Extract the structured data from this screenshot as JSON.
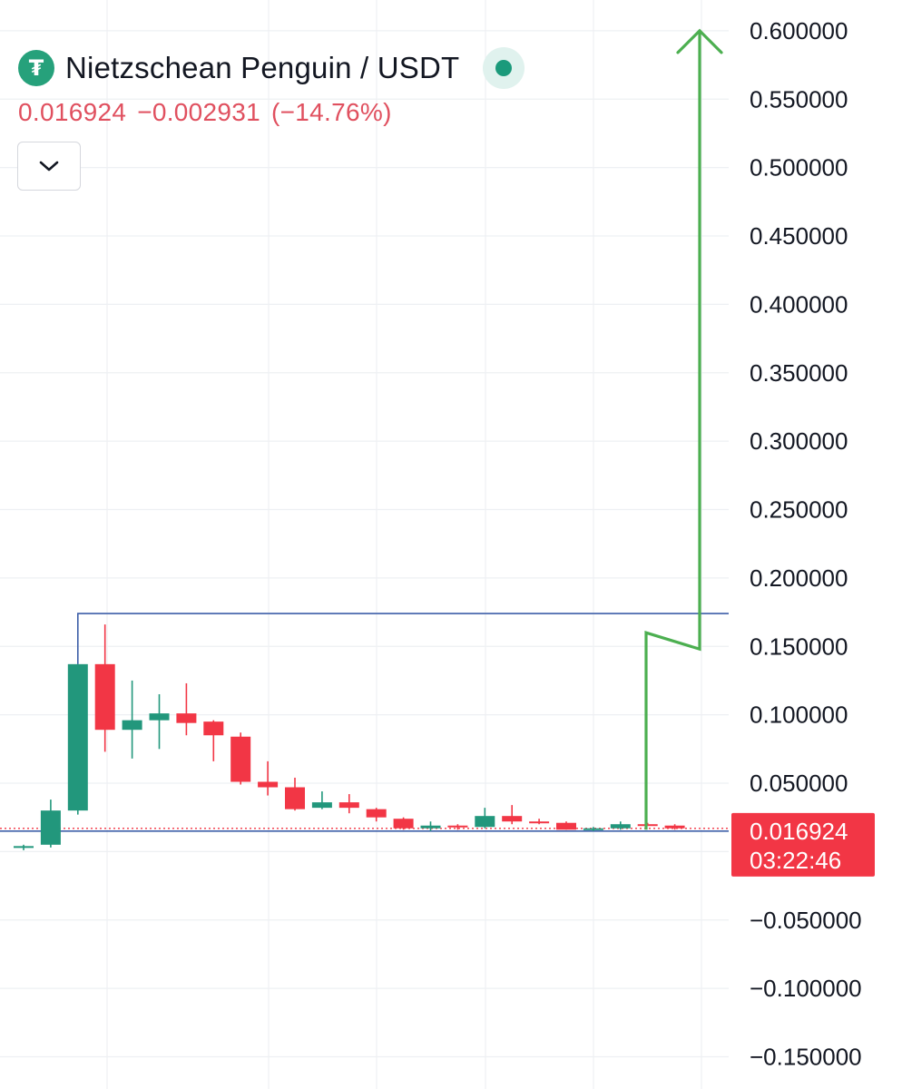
{
  "header": {
    "coin_icon": "tether-icon",
    "pair_title": "Nietzschean Penguin / USDT",
    "status_color": "#1b9a7b"
  },
  "price_line": {
    "last": "0.016924",
    "change": "−0.002931",
    "change_pct": "(−14.76%)"
  },
  "controls": {
    "collapse_icon": "chevron-down-icon"
  },
  "chart_data": {
    "type": "candlestick",
    "title": "Nietzschean Penguin / USDT",
    "ylim": [
      -0.16,
      0.605
    ],
    "y_ticks": [
      {
        "value": 0.6,
        "label": "0.600000"
      },
      {
        "value": 0.55,
        "label": "0.550000"
      },
      {
        "value": 0.5,
        "label": "0.500000"
      },
      {
        "value": 0.45,
        "label": "0.450000"
      },
      {
        "value": 0.4,
        "label": "0.400000"
      },
      {
        "value": 0.35,
        "label": "0.350000"
      },
      {
        "value": 0.3,
        "label": "0.300000"
      },
      {
        "value": 0.25,
        "label": "0.250000"
      },
      {
        "value": 0.2,
        "label": "0.200000"
      },
      {
        "value": 0.15,
        "label": "0.150000"
      },
      {
        "value": 0.1,
        "label": "0.100000"
      },
      {
        "value": 0.05,
        "label": "0.050000"
      },
      {
        "value": -0.05,
        "label": "−0.050000"
      },
      {
        "value": -0.1,
        "label": "−0.100000"
      },
      {
        "value": -0.15,
        "label": "−0.150000"
      }
    ],
    "candles": [
      {
        "o": 0.003,
        "h": 0.005,
        "l": 0.001,
        "c": 0.004
      },
      {
        "o": 0.005,
        "h": 0.038,
        "l": 0.003,
        "c": 0.03
      },
      {
        "o": 0.03,
        "h": 0.137,
        "l": 0.027,
        "c": 0.137
      },
      {
        "o": 0.137,
        "h": 0.166,
        "l": 0.073,
        "c": 0.089
      },
      {
        "o": 0.089,
        "h": 0.125,
        "l": 0.068,
        "c": 0.096
      },
      {
        "o": 0.096,
        "h": 0.115,
        "l": 0.075,
        "c": 0.101
      },
      {
        "o": 0.101,
        "h": 0.123,
        "l": 0.085,
        "c": 0.094
      },
      {
        "o": 0.095,
        "h": 0.096,
        "l": 0.066,
        "c": 0.085
      },
      {
        "o": 0.084,
        "h": 0.087,
        "l": 0.049,
        "c": 0.051
      },
      {
        "o": 0.051,
        "h": 0.066,
        "l": 0.041,
        "c": 0.047
      },
      {
        "o": 0.047,
        "h": 0.054,
        "l": 0.03,
        "c": 0.031
      },
      {
        "o": 0.032,
        "h": 0.044,
        "l": 0.031,
        "c": 0.036
      },
      {
        "o": 0.036,
        "h": 0.042,
        "l": 0.028,
        "c": 0.032
      },
      {
        "o": 0.031,
        "h": 0.032,
        "l": 0.022,
        "c": 0.025
      },
      {
        "o": 0.024,
        "h": 0.025,
        "l": 0.016,
        "c": 0.017
      },
      {
        "o": 0.017,
        "h": 0.022,
        "l": 0.015,
        "c": 0.019
      },
      {
        "o": 0.019,
        "h": 0.02,
        "l": 0.016,
        "c": 0.018
      },
      {
        "o": 0.018,
        "h": 0.032,
        "l": 0.017,
        "c": 0.026
      },
      {
        "o": 0.026,
        "h": 0.034,
        "l": 0.02,
        "c": 0.022
      },
      {
        "o": 0.022,
        "h": 0.024,
        "l": 0.02,
        "c": 0.021
      },
      {
        "o": 0.021,
        "h": 0.022,
        "l": 0.016,
        "c": 0.016
      },
      {
        "o": 0.016,
        "h": 0.018,
        "l": 0.015,
        "c": 0.017
      },
      {
        "o": 0.017,
        "h": 0.022,
        "l": 0.016,
        "c": 0.02
      },
      {
        "o": 0.02,
        "h": 0.021,
        "l": 0.019,
        "c": 0.019
      },
      {
        "o": 0.019,
        "h": 0.02,
        "l": 0.016,
        "c": 0.017
      }
    ],
    "resistance_level": 0.174,
    "support_level": 0.015,
    "current_price": 0.016924,
    "price_badge": {
      "price": "0.016924",
      "countdown": "03:22:46",
      "color": "#f23645"
    },
    "projection_arrow": {
      "color": "#4caf50",
      "points": [
        [
          0.016
        ],
        [
          0.16
        ],
        [
          0.148
        ],
        [
          0.6
        ]
      ]
    },
    "colors": {
      "up": "#22977c",
      "down": "#f23645",
      "level_line": "#3d5fa8",
      "grid": "#eef0f3"
    },
    "grid": true,
    "price_axis": "right"
  }
}
